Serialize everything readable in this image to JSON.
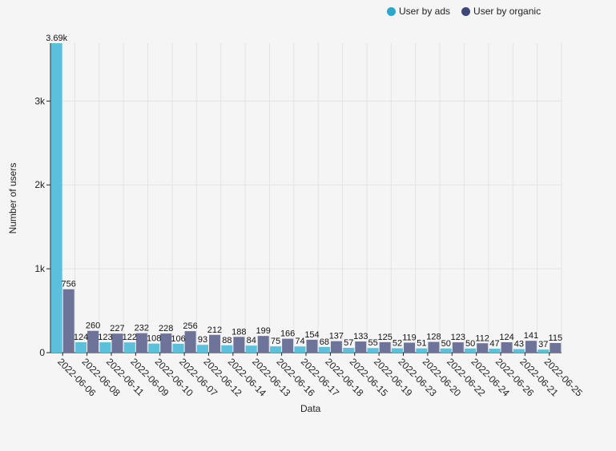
{
  "legend": {
    "series1_label": "User by ads",
    "series2_label": "User by organic"
  },
  "colors": {
    "ads": "#5bc0dc",
    "organic": "#6e7399",
    "legend_ads": "#2aa8cc",
    "legend_organic": "#3f4779",
    "grid": "#e3e3e3",
    "axis": "#222222"
  },
  "chart_data": {
    "type": "bar",
    "title": "",
    "xlabel": "Data",
    "ylabel": "Number of users",
    "ylim": [
      0,
      3690
    ],
    "yticks": [
      0,
      1000,
      2000,
      3000
    ],
    "ytick_labels": [
      "0",
      "1k",
      "2k",
      "3k"
    ],
    "grid": true,
    "legend_position": "top-right",
    "categories": [
      "2022-06-06",
      "2022-06-08",
      "2022-06-11",
      "2022-06-09",
      "2022-06-10",
      "2022-06-07",
      "2022-06-12",
      "2022-06-14",
      "2022-06-13",
      "2022-06-16",
      "2022-06-17",
      "2022-06-18",
      "2022-06-15",
      "2022-06-19",
      "2022-06-23",
      "2022-06-20",
      "2022-06-22",
      "2022-06-24",
      "2022-06-26",
      "2022-06-21",
      "2022-06-25"
    ],
    "series": [
      {
        "name": "User by ads",
        "values": [
          3690,
          124,
          123,
          122,
          108,
          106,
          93,
          88,
          84,
          75,
          74,
          68,
          57,
          55,
          52,
          51,
          50,
          50,
          47,
          43,
          37
        ],
        "labels": [
          "3.69k",
          "124",
          "123",
          "122",
          "108",
          "106",
          "93",
          "88",
          "84",
          "75",
          "74",
          "68",
          "57",
          "55",
          "52",
          "51",
          "50",
          "50",
          "47",
          "43",
          "37"
        ]
      },
      {
        "name": "User by organic",
        "values": [
          756,
          260,
          227,
          232,
          228,
          256,
          212,
          188,
          199,
          166,
          154,
          137,
          133,
          125,
          119,
          128,
          123,
          112,
          124,
          141,
          115
        ],
        "labels": [
          "756",
          "260",
          "227",
          "232",
          "228",
          "256",
          "212",
          "188",
          "199",
          "166",
          "154",
          "137",
          "133",
          "125",
          "119",
          "128",
          "123",
          "112",
          "124",
          "141",
          "115"
        ]
      }
    ]
  }
}
